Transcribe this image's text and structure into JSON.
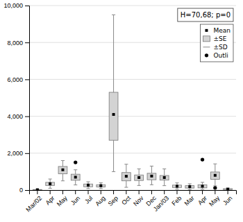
{
  "chart_data": {
    "type": "box",
    "categories": [
      "Mar/02",
      "Apr",
      "May",
      "Jun",
      "Jul",
      "Aug",
      "Sep",
      "Oct",
      "Nov",
      "Dec",
      "Jan/03",
      "Feb",
      "Mar",
      "Apr",
      "May",
      "Jun"
    ],
    "series": [
      {
        "name": "Mean",
        "type": "scatter",
        "marker": "square",
        "color": "#000000",
        "values": [
          20,
          340,
          1100,
          700,
          270,
          240,
          4100,
          750,
          680,
          760,
          680,
          210,
          190,
          210,
          800,
          50
        ]
      },
      {
        "name": "±SE",
        "type": "box",
        "color": "#d3d3d3",
        "low": [
          8,
          250,
          880,
          530,
          180,
          170,
          2700,
          500,
          520,
          560,
          540,
          140,
          110,
          120,
          580,
          20
        ],
        "high": [
          30,
          420,
          1280,
          860,
          330,
          290,
          5300,
          950,
          820,
          910,
          790,
          270,
          240,
          290,
          980,
          80
        ]
      },
      {
        "name": "±SD",
        "type": "errorbar",
        "color": "#888888",
        "low": [
          3,
          100,
          500,
          280,
          80,
          80,
          1000,
          150,
          250,
          290,
          240,
          50,
          30,
          40,
          230,
          5
        ],
        "high": [
          38,
          600,
          1600,
          1100,
          450,
          400,
          9500,
          1400,
          1150,
          1300,
          1150,
          390,
          340,
          420,
          1420,
          110
        ]
      },
      {
        "name": "Outli",
        "type": "scatter",
        "marker": "circle",
        "color": "#000000",
        "values": [
          [],
          [],
          [],
          [
            1500
          ],
          [],
          [],
          [],
          [],
          [],
          [],
          [],
          [],
          [],
          [
            1650
          ],
          [
            120
          ],
          []
        ]
      }
    ],
    "ylim": [
      0,
      10000
    ],
    "yticks": [
      0,
      {
        "value": 2000,
        "label": "2,000"
      },
      {
        "value": 4000,
        "label": "4,000"
      },
      {
        "value": 6000,
        "label": "6,000"
      },
      {
        "value": 8000,
        "label": "8,000"
      },
      {
        "value": 10000,
        "label": "10,000"
      }
    ],
    "grid": true,
    "legend": "upper right",
    "annotation": "H=70,68; p=0"
  }
}
